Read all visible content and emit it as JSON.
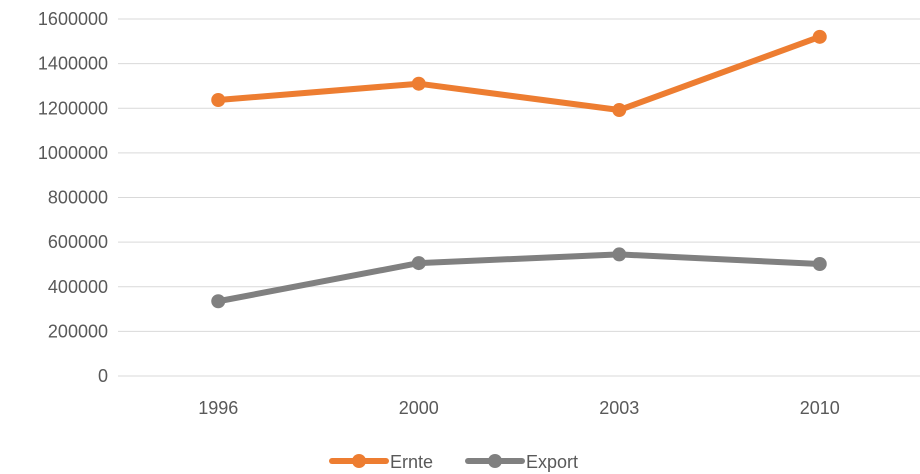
{
  "chart_data": {
    "type": "line",
    "title": "",
    "xlabel": "",
    "ylabel": "",
    "categories": [
      "1996",
      "2000",
      "2003",
      "2010"
    ],
    "y_ticks": [
      "0",
      "200000",
      "400000",
      "600000",
      "800000",
      "1000000",
      "1200000",
      "1400000",
      "1600000"
    ],
    "ylim": [
      0,
      1600000
    ],
    "grid": true,
    "legend_position": "bottom",
    "series": [
      {
        "name": "Ernte",
        "values": [
          1237000,
          1310000,
          1192000,
          1520000
        ],
        "color": "#ED7D31"
      },
      {
        "name": "Export",
        "values": [
          335000,
          506000,
          545000,
          502000
        ],
        "color": "#808080"
      }
    ]
  }
}
